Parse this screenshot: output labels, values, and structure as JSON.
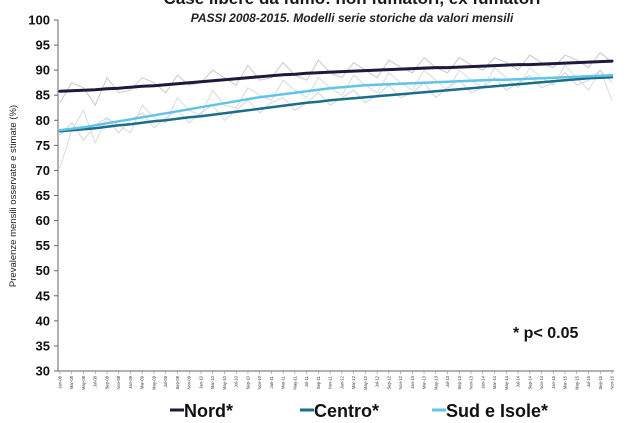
{
  "chart_data": {
    "type": "line",
    "title": "Case libere da fumo: non fumatori, ex fumatori",
    "subtitle": "PASSI 2008-2015. Modelli serie storiche da valori mensili",
    "ylabel": "Prevalenze mensili osservate e stimate (%)",
    "xlabel": "",
    "ylim": [
      30,
      100
    ],
    "yticks": [
      30,
      35,
      40,
      45,
      50,
      55,
      60,
      65,
      70,
      75,
      80,
      85,
      90,
      95,
      100
    ],
    "x": [
      "Jan-08",
      "Mar-08",
      "May-08",
      "Jul-08",
      "Sep-08",
      "Nov-08",
      "Jan-09",
      "Mar-09",
      "May-09",
      "Jul-09",
      "Sep-09",
      "Nov-09",
      "Jan-10",
      "Mar-10",
      "May-10",
      "Jul-10",
      "Sep-10",
      "Nov-10",
      "Jan-11",
      "Mar-11",
      "May-11",
      "Jul-11",
      "Sep-11",
      "Nov-11",
      "Jan-12",
      "Mar-12",
      "May-12",
      "Jul-12",
      "Sep-12",
      "Nov-12",
      "Jan-13",
      "Mar-13",
      "May-13",
      "Jul-13",
      "Sep-13",
      "Nov-13",
      "Jan-14",
      "Mar-14",
      "May-14",
      "Jul-14",
      "Sep-14",
      "Nov-14",
      "Jan-15",
      "Mar-15",
      "May-15",
      "Jul-15",
      "Sep-15",
      "Nov-15"
    ],
    "grid": false,
    "legend_position": "bottom",
    "series": [
      {
        "name": "Nord*",
        "color": "#1f1a3d",
        "width": 3,
        "values": [
          85.8,
          85.9,
          86.0,
          86.1,
          86.3,
          86.4,
          86.6,
          86.8,
          86.9,
          87.1,
          87.3,
          87.5,
          87.7,
          87.9,
          88.1,
          88.3,
          88.5,
          88.7,
          88.9,
          89.1,
          89.2,
          89.4,
          89.5,
          89.6,
          89.7,
          89.8,
          89.9,
          90.0,
          90.1,
          90.2,
          90.3,
          90.4,
          90.5,
          90.5,
          90.6,
          90.7,
          90.8,
          90.9,
          91.0,
          91.1,
          91.1,
          91.2,
          91.3,
          91.4,
          91.5,
          91.6,
          91.7,
          91.8
        ]
      },
      {
        "name": "Centro*",
        "color": "#1a6e8a",
        "width": 2.5,
        "values": [
          77.8,
          78.0,
          78.2,
          78.4,
          78.7,
          79.0,
          79.2,
          79.5,
          79.8,
          80.0,
          80.3,
          80.6,
          80.8,
          81.1,
          81.4,
          81.7,
          82.0,
          82.3,
          82.6,
          82.9,
          83.2,
          83.5,
          83.7,
          84.0,
          84.2,
          84.4,
          84.6,
          84.8,
          85.0,
          85.2,
          85.4,
          85.6,
          85.8,
          86.0,
          86.2,
          86.4,
          86.6,
          86.8,
          87.0,
          87.2,
          87.4,
          87.6,
          87.8,
          88.0,
          88.2,
          88.4,
          88.5,
          88.6
        ]
      },
      {
        "name": "Sud e Isole*",
        "color": "#5fc4e8",
        "width": 2.5,
        "values": [
          78.0,
          78.3,
          78.6,
          79.0,
          79.4,
          79.8,
          80.2,
          80.6,
          81.0,
          81.4,
          81.8,
          82.2,
          82.6,
          83.0,
          83.4,
          83.8,
          84.2,
          84.6,
          84.9,
          85.2,
          85.5,
          85.8,
          86.1,
          86.4,
          86.6,
          86.8,
          87.0,
          87.1,
          87.2,
          87.3,
          87.4,
          87.5,
          87.6,
          87.7,
          87.8,
          87.9,
          88.0,
          88.1,
          88.1,
          88.2,
          88.3,
          88.4,
          88.5,
          88.6,
          88.7,
          88.8,
          88.9,
          89.0
        ]
      }
    ],
    "observed": [
      {
        "color": "#c9c9c9",
        "values": [
          83.5,
          87.5,
          86.5,
          83.0,
          88.5,
          85.5,
          86.0,
          88.5,
          87.5,
          85.5,
          89.0,
          87.0,
          87.5,
          90.0,
          88.5,
          87.0,
          91.0,
          88.0,
          88.5,
          91.5,
          89.0,
          88.0,
          92.0,
          89.5,
          88.5,
          91.5,
          90.0,
          88.5,
          92.0,
          90.5,
          89.5,
          92.5,
          90.5,
          89.5,
          92.5,
          91.0,
          90.0,
          92.5,
          91.5,
          90.0,
          93.0,
          91.5,
          90.5,
          93.0,
          92.0,
          90.5,
          93.5,
          91.5
        ]
      },
      {
        "color": "#d4d4d4",
        "values": [
          77.0,
          79.5,
          76.0,
          79.0,
          80.5,
          77.5,
          80.0,
          81.5,
          78.5,
          80.5,
          82.0,
          79.5,
          81.5,
          83.0,
          80.0,
          82.0,
          84.0,
          81.5,
          83.5,
          84.5,
          82.0,
          83.5,
          85.5,
          83.0,
          84.5,
          86.0,
          83.5,
          85.0,
          87.0,
          84.5,
          85.5,
          87.5,
          84.5,
          86.5,
          88.0,
          85.5,
          86.5,
          88.5,
          86.0,
          87.5,
          89.0,
          86.5,
          87.5,
          89.5,
          87.0,
          88.0,
          90.0,
          87.5
        ]
      },
      {
        "color": "#dadada",
        "values": [
          70.5,
          78.0,
          82.0,
          75.5,
          80.5,
          79.0,
          77.5,
          83.0,
          80.5,
          79.5,
          84.5,
          82.0,
          81.0,
          86.0,
          83.0,
          82.5,
          86.5,
          85.0,
          84.0,
          88.0,
          86.0,
          84.5,
          88.5,
          86.5,
          85.0,
          89.0,
          87.0,
          85.5,
          89.5,
          87.5,
          86.0,
          90.0,
          88.0,
          86.0,
          90.0,
          88.0,
          86.5,
          90.5,
          88.5,
          86.5,
          90.5,
          88.5,
          87.0,
          91.0,
          88.5,
          86.0,
          90.0,
          84.0
        ]
      }
    ],
    "annotation": "* p< 0.05",
    "legend": [
      "Nord*",
      "Centro*",
      "Sud e Isole*"
    ]
  }
}
